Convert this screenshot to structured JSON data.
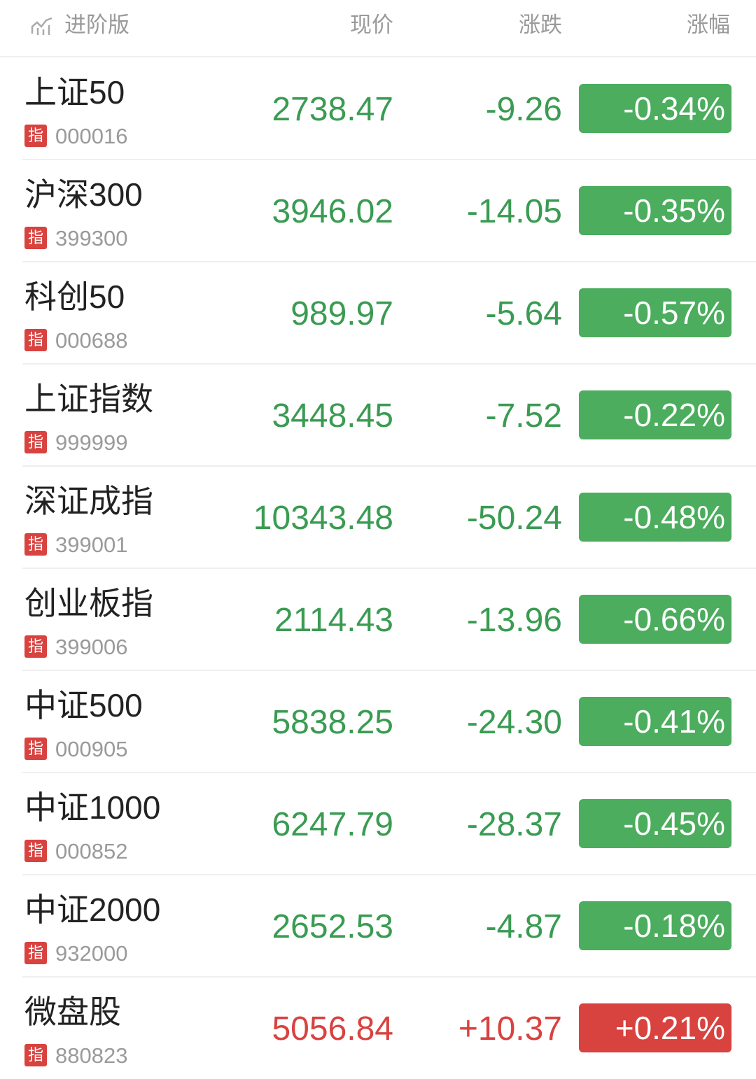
{
  "header": {
    "mode": "进阶版",
    "columns": [
      "现价",
      "涨跌",
      "涨幅"
    ]
  },
  "rows": [
    {
      "name": "上证50",
      "badge": "指",
      "code": "000016",
      "price": "2738.47",
      "change": "-9.26",
      "pct": "-0.34%"
    },
    {
      "name": "沪深300",
      "badge": "指",
      "code": "399300",
      "price": "3946.02",
      "change": "-14.05",
      "pct": "-0.35%"
    },
    {
      "name": "科创50",
      "badge": "指",
      "code": "000688",
      "price": "989.97",
      "change": "-5.64",
      "pct": "-0.57%"
    },
    {
      "name": "上证指数",
      "badge": "指",
      "code": "999999",
      "price": "3448.45",
      "change": "-7.52",
      "pct": "-0.22%"
    },
    {
      "name": "深证成指",
      "badge": "指",
      "code": "399001",
      "price": "10343.48",
      "change": "-50.24",
      "pct": "-0.48%"
    },
    {
      "name": "创业板指",
      "badge": "指",
      "code": "399006",
      "price": "2114.43",
      "change": "-13.96",
      "pct": "-0.66%"
    },
    {
      "name": "中证500",
      "badge": "指",
      "code": "000905",
      "price": "5838.25",
      "change": "-24.30",
      "pct": "-0.41%"
    },
    {
      "name": "中证1000",
      "badge": "指",
      "code": "000852",
      "price": "6247.79",
      "change": "-28.37",
      "pct": "-0.45%"
    },
    {
      "name": "中证2000",
      "badge": "指",
      "code": "932000",
      "price": "2652.53",
      "change": "-4.87",
      "pct": "-0.18%"
    },
    {
      "name": "微盘股",
      "badge": "指",
      "code": "880823",
      "price": "5056.84",
      "change": "+10.37",
      "pct": "+0.21%"
    }
  ]
}
